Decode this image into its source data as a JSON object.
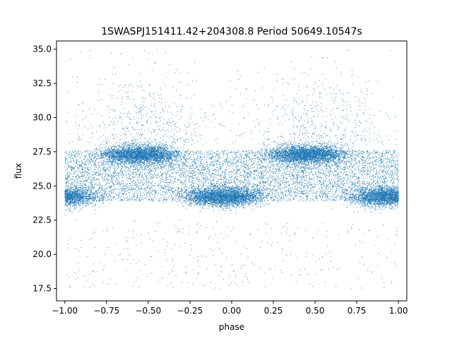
{
  "chart_data": {
    "type": "scatter",
    "title": "1SWASPJ151411.42+204308.8 Period 50649.10547s",
    "xlabel": "phase",
    "ylabel": "flux",
    "xlim": [
      -1.05,
      1.05
    ],
    "ylim": [
      16.6,
      35.6
    ],
    "xticks": [
      -1.0,
      -0.75,
      -0.5,
      -0.25,
      0.0,
      0.25,
      0.5,
      0.75,
      1.0
    ],
    "xtick_labels": [
      "−1.00",
      "−0.75",
      "−0.50",
      "−0.25",
      "0.00",
      "0.25",
      "0.50",
      "0.75",
      "1.00"
    ],
    "yticks": [
      17.5,
      20.0,
      22.5,
      25.0,
      27.5,
      30.0,
      32.5,
      35.0
    ],
    "ytick_labels": [
      "17.5",
      "20.0",
      "22.5",
      "25.0",
      "27.5",
      "30.0",
      "32.5",
      "35.0"
    ],
    "grid": false,
    "marker_color": "#1f77b4",
    "phase_range": [
      -1.0,
      1.0
    ],
    "flux_range": [
      17.5,
      35.0
    ],
    "upper_band_flux": 27.3,
    "lower_band_flux": 24.2,
    "upper_band_phase_centers": [
      -0.55,
      0.45
    ],
    "lower_band_phase_centers": [
      -0.05,
      0.95
    ],
    "band_phase_width": 0.22,
    "bright_scatter_phase_centers": [
      -0.5,
      0.5
    ],
    "point_count": 21000
  }
}
